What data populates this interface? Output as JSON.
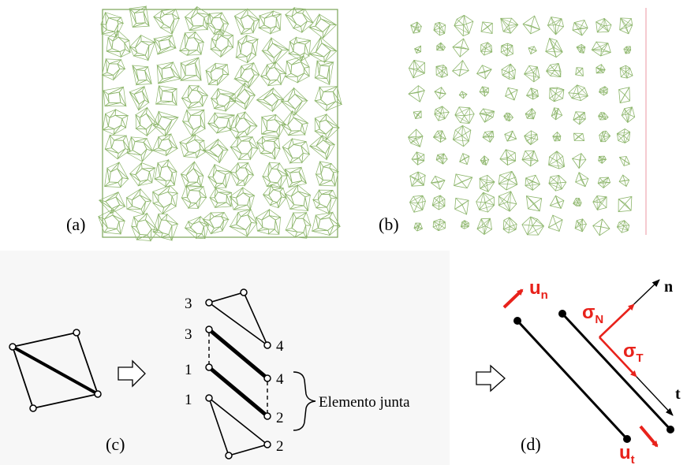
{
  "panels": {
    "a": {
      "label": "(a)"
    },
    "b": {
      "label": "(b)"
    },
    "c": {
      "label": "(c)",
      "node_labels": {
        "top_tri_left": "3",
        "top_joint_left": "3",
        "top_joint_right": "4",
        "bottom_joint_left": "1",
        "bottom_joint_right": "4",
        "bottom_tri_left": "1",
        "bottom_joint_right2": "2",
        "bottom_tri_right": "2"
      },
      "joint_label": "Elemento junta"
    },
    "d": {
      "label": "(d)",
      "labels": {
        "un_main": "u",
        "un_sub": "n",
        "sigmaN_main": "σ",
        "sigmaN_sub": "N",
        "sigmaT_main": "σ",
        "sigmaT_sub": "T",
        "ut_main": "u",
        "ut_sub": "t",
        "n_axis": "n",
        "t_axis": "t"
      }
    }
  },
  "colors": {
    "mesh": "#8cb56a",
    "mesh_border": "#7aa357",
    "accent_red": "#e8221b",
    "ink": "#000000",
    "divider_pink": "#f2b8c0"
  }
}
